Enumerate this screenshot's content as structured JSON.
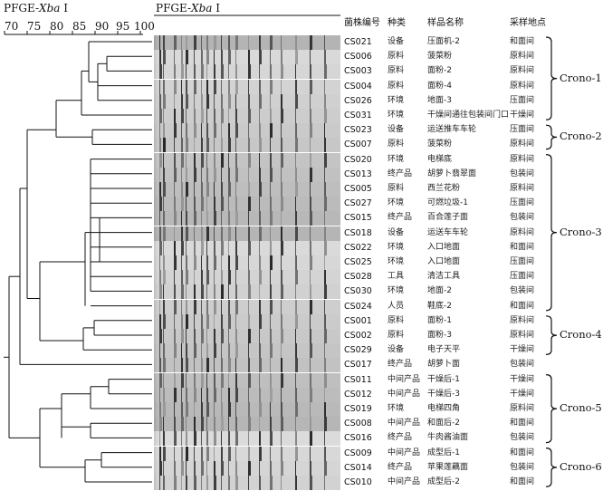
{
  "titles": {
    "left_prefix": "PFGE-",
    "left_enzyme": "Xba",
    "left_suffix": " I",
    "right_prefix": "PFGE-",
    "right_enzyme": "Xba",
    "right_suffix": " I"
  },
  "scale": {
    "ticks": [
      "70",
      "75",
      "80",
      "85",
      "90",
      "95",
      "100"
    ]
  },
  "headers": {
    "id": "菌株编号",
    "category": "种类",
    "name": "样品名称",
    "site": "采样地点"
  },
  "rows": [
    {
      "id": "CS021",
      "category": "设备",
      "name": "压面机-2",
      "site": "和面间"
    },
    {
      "id": "CS006",
      "category": "原料",
      "name": "菠菜粉",
      "site": "原料间"
    },
    {
      "id": "CS003",
      "category": "原料",
      "name": "面粉-2",
      "site": "原料间"
    },
    {
      "id": "CS004",
      "category": "原料",
      "name": "面粉-4",
      "site": "原料间"
    },
    {
      "id": "CS026",
      "category": "环境",
      "name": "地面-3",
      "site": "压面间"
    },
    {
      "id": "CS031",
      "category": "环境",
      "name": "干燥间通往包装间门口",
      "site": "干燥间"
    },
    {
      "id": "CS023",
      "category": "设备",
      "name": "运送推车车轮",
      "site": "压面间"
    },
    {
      "id": "CS007",
      "category": "原料",
      "name": "菠菜粉",
      "site": "原料间"
    },
    {
      "id": "CS020",
      "category": "环境",
      "name": "电梯底",
      "site": "原料间"
    },
    {
      "id": "CS013",
      "category": "终产品",
      "name": "胡萝卜翡翠面",
      "site": "包装间"
    },
    {
      "id": "CS005",
      "category": "原料",
      "name": "西兰花粉",
      "site": "原料间"
    },
    {
      "id": "CS027",
      "category": "环境",
      "name": "可燃垃圾-1",
      "site": "压面间"
    },
    {
      "id": "CS015",
      "category": "终产品",
      "name": "百合莲子面",
      "site": "包装间"
    },
    {
      "id": "CS018",
      "category": "设备",
      "name": "运送车车轮",
      "site": "原料间"
    },
    {
      "id": "CS022",
      "category": "环境",
      "name": "入口地面",
      "site": "和面间"
    },
    {
      "id": "CS025",
      "category": "环境",
      "name": "入口地面",
      "site": "压面间"
    },
    {
      "id": "CS028",
      "category": "工具",
      "name": "清洁工具",
      "site": "压面间"
    },
    {
      "id": "CS030",
      "category": "环境",
      "name": "地面-2",
      "site": "包装间"
    },
    {
      "id": "CS024",
      "category": "人员",
      "name": "鞋底-2",
      "site": "和面间"
    },
    {
      "id": "CS001",
      "category": "原料",
      "name": "面粉-1",
      "site": "原料间"
    },
    {
      "id": "CS002",
      "category": "原料",
      "name": "面粉-3",
      "site": "原料间"
    },
    {
      "id": "CS029",
      "category": "设备",
      "name": "电子天平",
      "site": "干燥间"
    },
    {
      "id": "CS017",
      "category": "终产品",
      "name": "胡萝卜面",
      "site": "包装间"
    },
    {
      "id": "CS011",
      "category": "中间产品",
      "name": "干燥后-1",
      "site": "干燥间"
    },
    {
      "id": "CS012",
      "category": "中间产品",
      "name": "干燥后-3",
      "site": "干燥间"
    },
    {
      "id": "CS019",
      "category": "环境",
      "name": "电梯四角",
      "site": "原料间"
    },
    {
      "id": "CS008",
      "category": "中间产品",
      "name": "和面后-2",
      "site": "和面间"
    },
    {
      "id": "CS016",
      "category": "终产品",
      "name": "牛肉酱油面",
      "site": "包装间"
    },
    {
      "id": "CS009",
      "category": "中间产品",
      "name": "成型后-1",
      "site": "和面间"
    },
    {
      "id": "CS014",
      "category": "终产品",
      "name": "苹果莲藕面",
      "site": "包装间"
    },
    {
      "id": "CS010",
      "category": "中间产品",
      "name": "成型后-2",
      "site": "和面间"
    }
  ],
  "groups": [
    {
      "label": "Crono-1",
      "from": 0,
      "to": 5
    },
    {
      "label": "Crono-2",
      "from": 6,
      "to": 7
    },
    {
      "label": "Crono-3",
      "from": 8,
      "to": 18
    },
    {
      "label": "Crono-4",
      "from": 19,
      "to": 21
    },
    {
      "label": "Crono-5",
      "from": 23,
      "to": 27
    },
    {
      "label": "Crono-6",
      "from": 28,
      "to": 30
    }
  ]
}
